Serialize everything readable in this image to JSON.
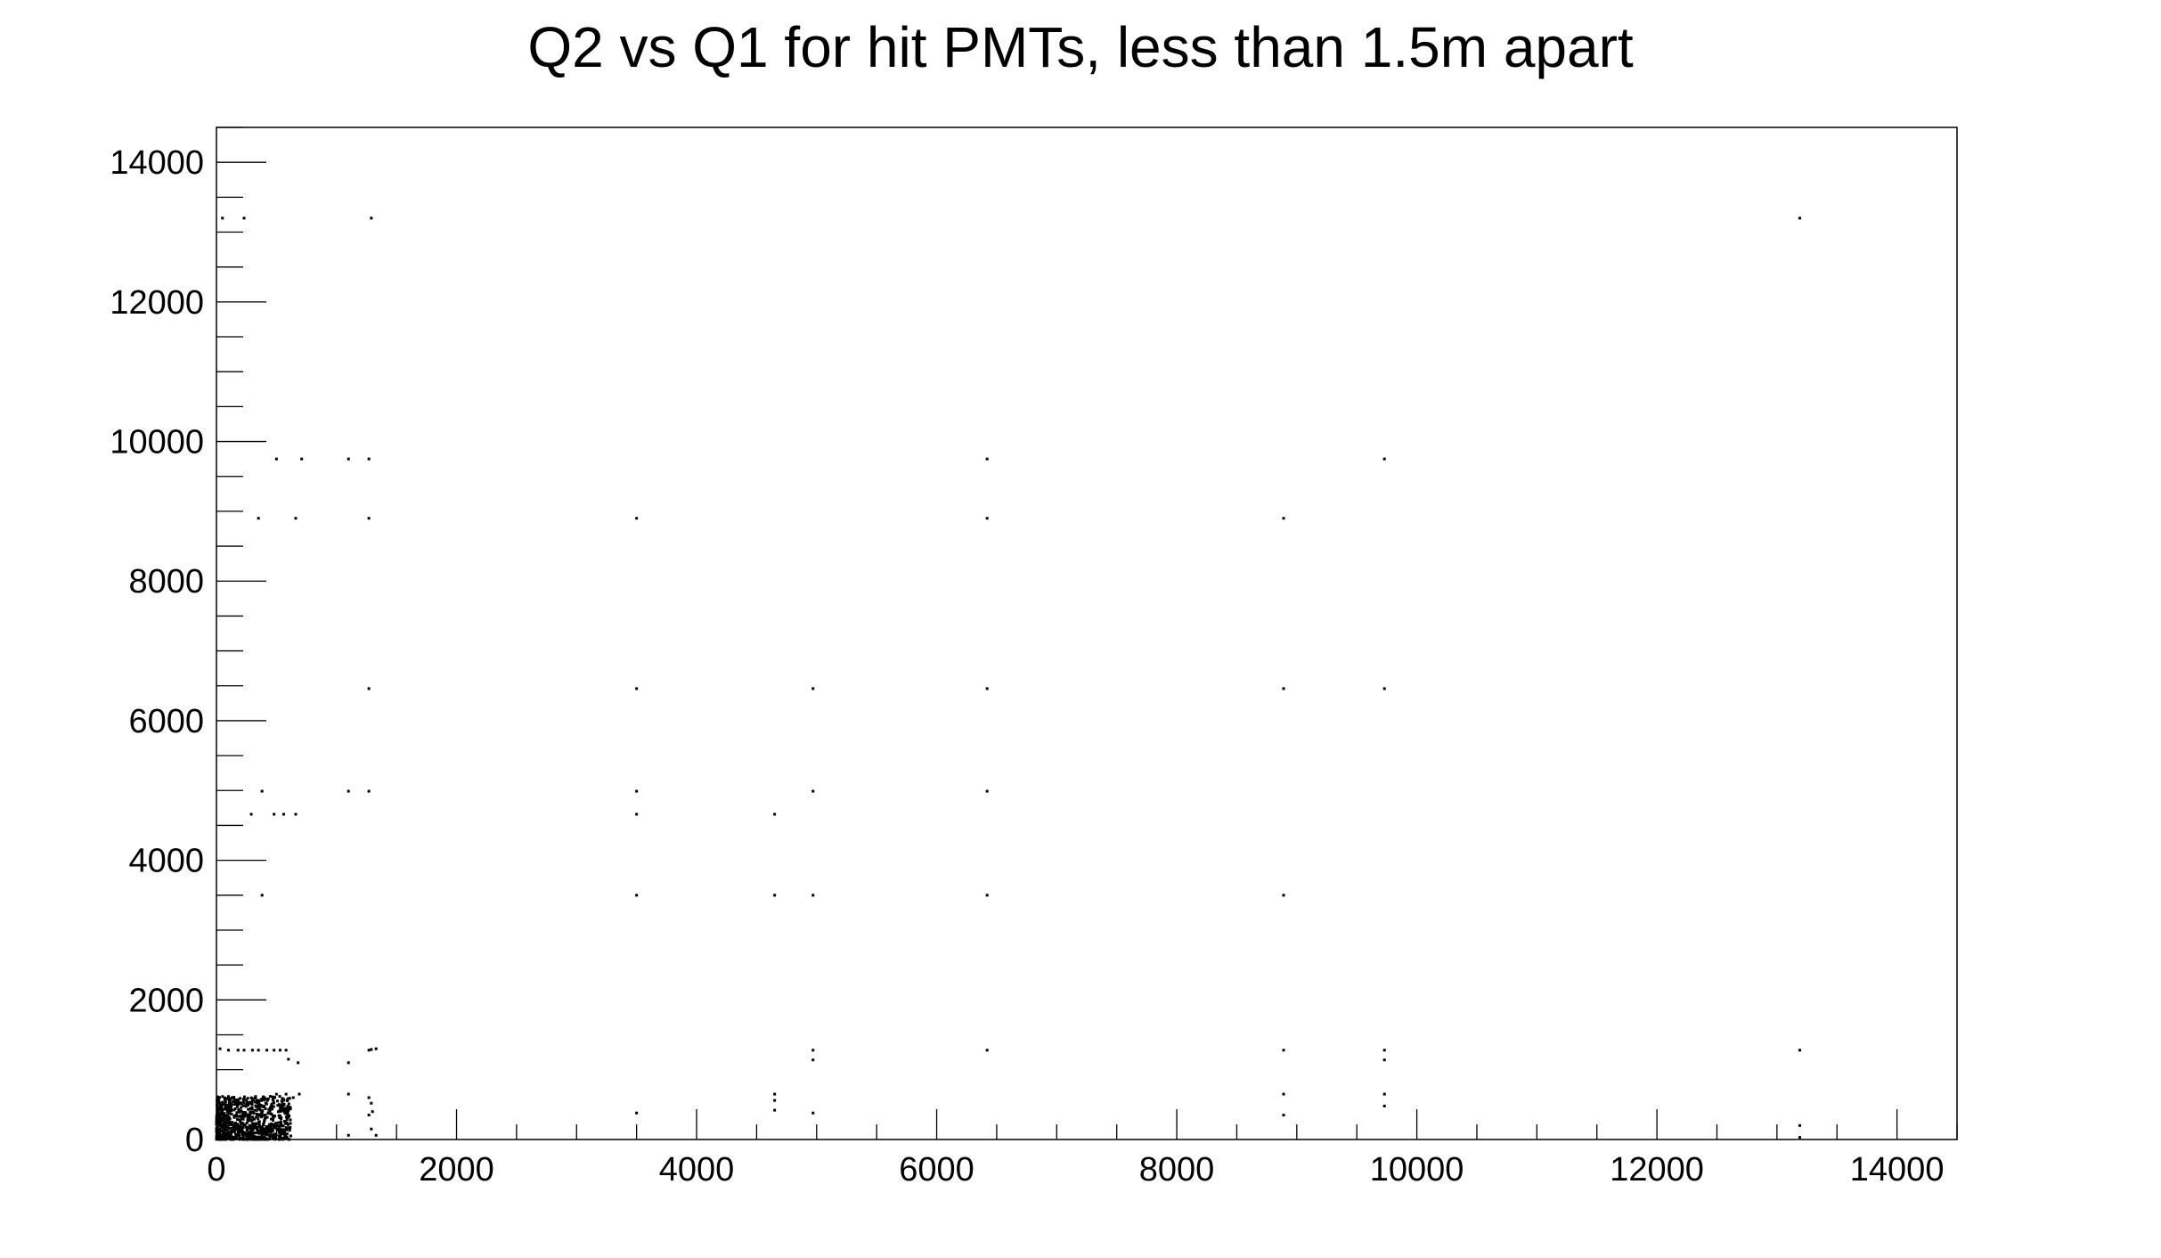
{
  "chart_data": {
    "type": "scatter",
    "title": "Q2 vs Q1 for hit PMTs, less than 1.5m apart",
    "xlabel": "",
    "ylabel": "",
    "xlim": [
      0,
      14500
    ],
    "ylim": [
      0,
      14500
    ],
    "x_ticks": [
      0,
      2000,
      4000,
      6000,
      8000,
      10000,
      12000,
      14000
    ],
    "y_ticks": [
      0,
      2000,
      4000,
      6000,
      8000,
      10000,
      12000,
      14000
    ],
    "grid": false,
    "legend": "none",
    "marker_color": "#000000",
    "series": [
      {
        "values": [
          [
            50,
            13200
          ],
          [
            230,
            13200
          ],
          [
            1290,
            13200
          ],
          [
            13190,
            13200
          ],
          [
            500,
            9750
          ],
          [
            710,
            9750
          ],
          [
            1100,
            9750
          ],
          [
            1270,
            9750
          ],
          [
            6420,
            9750
          ],
          [
            9730,
            9750
          ],
          [
            350,
            8900
          ],
          [
            660,
            8900
          ],
          [
            1270,
            8900
          ],
          [
            3500,
            8900
          ],
          [
            6420,
            8900
          ],
          [
            8890,
            8900
          ],
          [
            1270,
            6460
          ],
          [
            3500,
            6460
          ],
          [
            4970,
            6460
          ],
          [
            6420,
            6460
          ],
          [
            8890,
            6460
          ],
          [
            9730,
            6460
          ],
          [
            380,
            4990
          ],
          [
            1100,
            4990
          ],
          [
            1270,
            4990
          ],
          [
            3500,
            4990
          ],
          [
            4970,
            4990
          ],
          [
            6420,
            4990
          ],
          [
            290,
            4660
          ],
          [
            480,
            4660
          ],
          [
            560,
            4660
          ],
          [
            660,
            4660
          ],
          [
            3500,
            4660
          ],
          [
            4650,
            4660
          ],
          [
            380,
            3500
          ],
          [
            3500,
            3500
          ],
          [
            4650,
            3500
          ],
          [
            4970,
            3500
          ],
          [
            6420,
            3500
          ],
          [
            8890,
            3500
          ],
          [
            30,
            1300
          ],
          [
            100,
            1280
          ],
          [
            180,
            1280
          ],
          [
            230,
            1280
          ],
          [
            300,
            1280
          ],
          [
            350,
            1280
          ],
          [
            420,
            1280
          ],
          [
            480,
            1280
          ],
          [
            530,
            1280
          ],
          [
            580,
            1280
          ],
          [
            1270,
            1280
          ],
          [
            1290,
            1290
          ],
          [
            1330,
            1300
          ],
          [
            4970,
            1280
          ],
          [
            6420,
            1280
          ],
          [
            8890,
            1280
          ],
          [
            9730,
            1280
          ],
          [
            13190,
            1280
          ],
          [
            4970,
            1140
          ],
          [
            9730,
            1140
          ],
          [
            680,
            1100
          ],
          [
            1100,
            1100
          ],
          [
            600,
            1150
          ],
          [
            500,
            650
          ],
          [
            580,
            650
          ],
          [
            690,
            650
          ],
          [
            1100,
            650
          ],
          [
            4650,
            650
          ],
          [
            8890,
            650
          ],
          [
            9730,
            650
          ],
          [
            400,
            600
          ],
          [
            640,
            600
          ],
          [
            1270,
            600
          ],
          [
            4650,
            560
          ],
          [
            1290,
            520
          ],
          [
            9730,
            480
          ],
          [
            1300,
            400
          ],
          [
            1270,
            350
          ],
          [
            3500,
            380
          ],
          [
            4650,
            420
          ],
          [
            4970,
            380
          ],
          [
            8890,
            350
          ],
          [
            13190,
            200
          ],
          [
            1290,
            150
          ],
          [
            1330,
            60
          ],
          [
            13190,
            30
          ],
          [
            1100,
            60
          ]
        ]
      }
    ],
    "dense_cluster": {
      "x_range": [
        0,
        620
      ],
      "y_range": [
        0,
        620
      ],
      "approx_points": 900
    }
  }
}
